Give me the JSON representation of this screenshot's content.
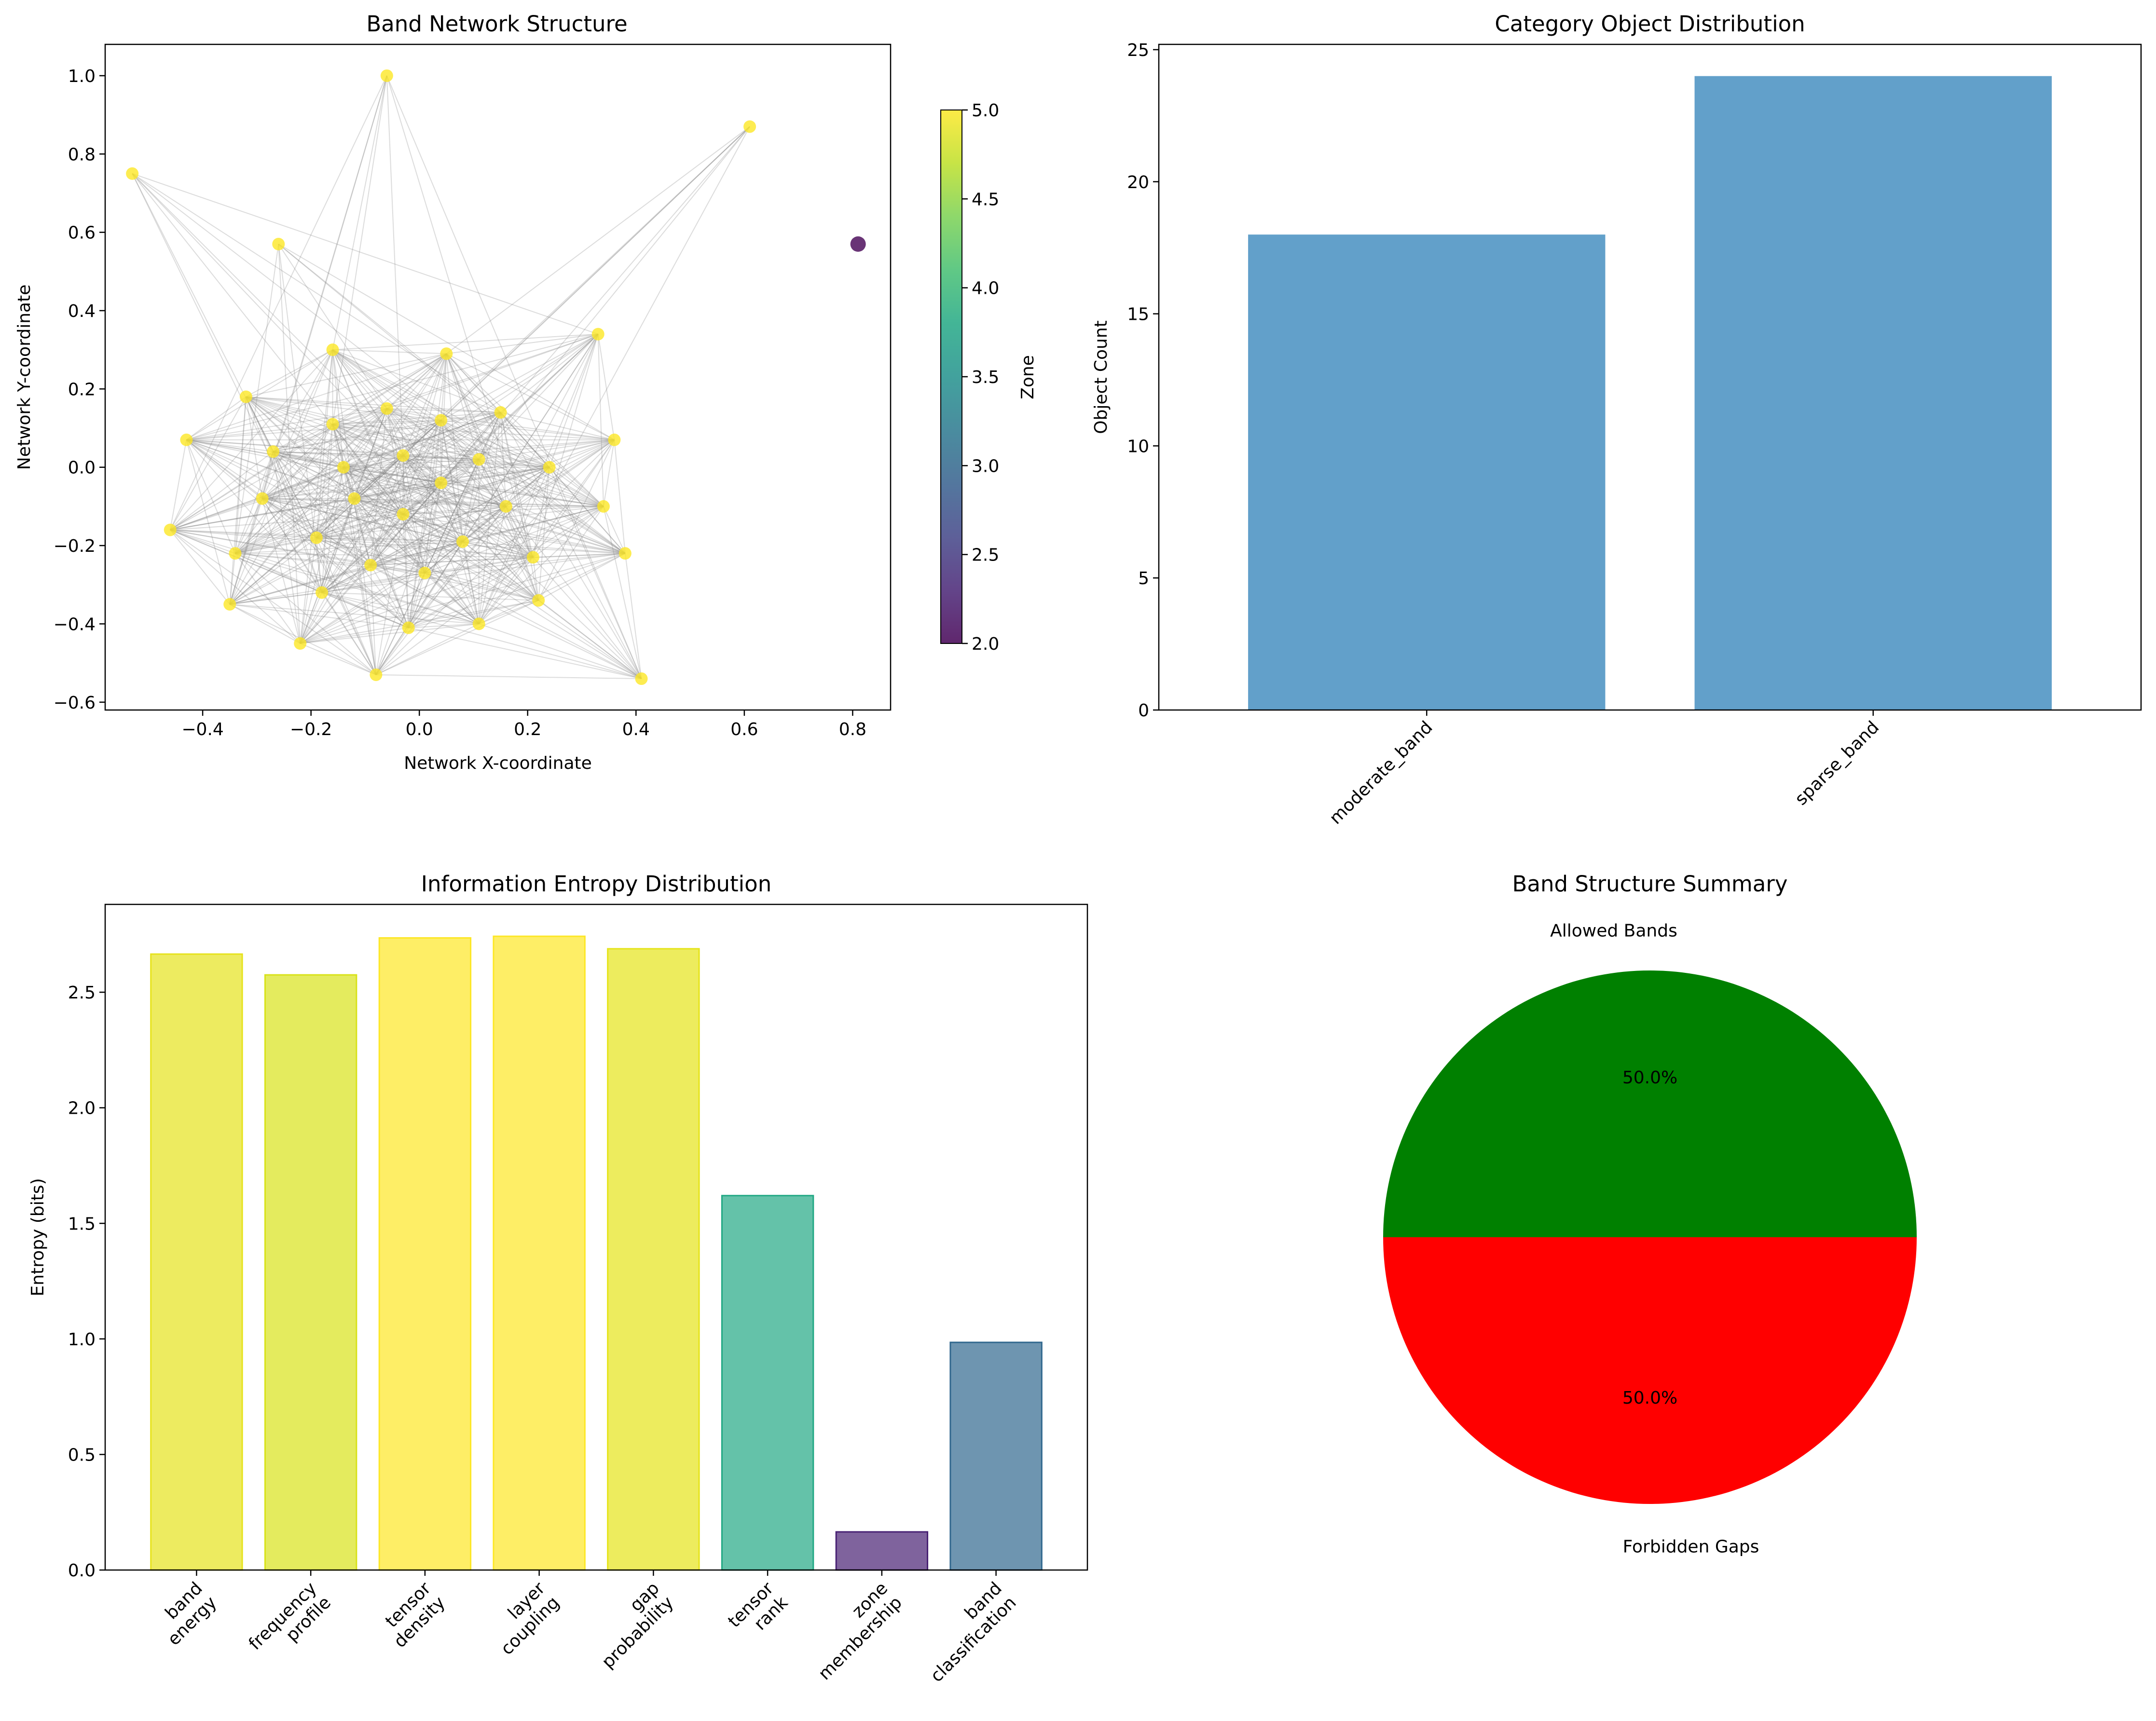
{
  "chart_data": [
    {
      "type": "scatter",
      "title": "Band Network Structure",
      "xlabel": "Network X-coordinate",
      "ylabel": "Network Y-coordinate",
      "xlim": [
        -0.58,
        0.87
      ],
      "ylim": [
        -0.62,
        1.08
      ],
      "x_ticks": [
        -0.4,
        -0.2,
        0.0,
        0.2,
        0.4,
        0.6,
        0.8
      ],
      "y_ticks": [
        -0.6,
        -0.4,
        -0.2,
        0.0,
        0.2,
        0.4,
        0.6,
        0.8,
        1.0
      ],
      "x_tick_labels": [
        "−0.4",
        "−0.2",
        "0.0",
        "0.2",
        "0.4",
        "0.6",
        "0.8"
      ],
      "y_tick_labels": [
        "−0.6",
        "−0.4",
        "−0.2",
        "0.0",
        "0.2",
        "0.4",
        "0.6",
        "0.8",
        "1.0"
      ],
      "colorbar": {
        "label": "Zone",
        "colormap": "viridis",
        "range": [
          2.0,
          5.0
        ],
        "ticks": [
          2.0,
          2.5,
          3.0,
          3.5,
          4.0,
          4.5,
          5.0
        ],
        "tick_labels": [
          "2.0",
          "2.5",
          "3.0",
          "3.5",
          "4.0",
          "4.5",
          "5.0"
        ]
      },
      "edge_color": "#808080",
      "points": [
        {
          "x": -0.53,
          "y": 0.75,
          "zone": 5
        },
        {
          "x": -0.06,
          "y": 1.0,
          "zone": 5
        },
        {
          "x": 0.61,
          "y": 0.87,
          "zone": 5
        },
        {
          "x": 0.81,
          "y": 0.57,
          "zone": 2
        },
        {
          "x": -0.26,
          "y": 0.57,
          "zone": 5
        },
        {
          "x": 0.33,
          "y": 0.34,
          "zone": 5
        },
        {
          "x": -0.16,
          "y": 0.3,
          "zone": 5
        },
        {
          "x": 0.05,
          "y": 0.29,
          "zone": 5
        },
        {
          "x": -0.32,
          "y": 0.18,
          "zone": 5
        },
        {
          "x": -0.06,
          "y": 0.15,
          "zone": 5
        },
        {
          "x": 0.15,
          "y": 0.14,
          "zone": 5
        },
        {
          "x": -0.16,
          "y": 0.11,
          "zone": 5
        },
        {
          "x": 0.04,
          "y": 0.12,
          "zone": 5
        },
        {
          "x": -0.43,
          "y": 0.07,
          "zone": 5
        },
        {
          "x": 0.36,
          "y": 0.07,
          "zone": 5
        },
        {
          "x": -0.27,
          "y": 0.04,
          "zone": 5
        },
        {
          "x": -0.03,
          "y": 0.03,
          "zone": 5
        },
        {
          "x": 0.11,
          "y": 0.02,
          "zone": 5
        },
        {
          "x": -0.14,
          "y": 0.0,
          "zone": 5
        },
        {
          "x": 0.24,
          "y": 0.0,
          "zone": 5
        },
        {
          "x": 0.04,
          "y": -0.04,
          "zone": 5
        },
        {
          "x": -0.29,
          "y": -0.08,
          "zone": 5
        },
        {
          "x": -0.12,
          "y": -0.08,
          "zone": 5
        },
        {
          "x": 0.16,
          "y": -0.1,
          "zone": 5
        },
        {
          "x": 0.34,
          "y": -0.1,
          "zone": 5
        },
        {
          "x": -0.03,
          "y": -0.12,
          "zone": 5
        },
        {
          "x": -0.46,
          "y": -0.16,
          "zone": 5
        },
        {
          "x": -0.19,
          "y": -0.18,
          "zone": 5
        },
        {
          "x": 0.08,
          "y": -0.19,
          "zone": 5
        },
        {
          "x": -0.34,
          "y": -0.22,
          "zone": 5
        },
        {
          "x": 0.38,
          "y": -0.22,
          "zone": 5
        },
        {
          "x": 0.21,
          "y": -0.23,
          "zone": 5
        },
        {
          "x": -0.09,
          "y": -0.25,
          "zone": 5
        },
        {
          "x": 0.01,
          "y": -0.27,
          "zone": 5
        },
        {
          "x": -0.18,
          "y": -0.32,
          "zone": 5
        },
        {
          "x": 0.22,
          "y": -0.34,
          "zone": 5
        },
        {
          "x": -0.35,
          "y": -0.35,
          "zone": 5
        },
        {
          "x": 0.11,
          "y": -0.4,
          "zone": 5
        },
        {
          "x": -0.02,
          "y": -0.41,
          "zone": 5
        },
        {
          "x": -0.22,
          "y": -0.45,
          "zone": 5
        },
        {
          "x": -0.08,
          "y": -0.53,
          "zone": 5
        },
        {
          "x": 0.41,
          "y": -0.54,
          "zone": 5
        }
      ]
    },
    {
      "type": "bar",
      "title": "Category Object Distribution",
      "xlabel": "",
      "ylabel": "Object Count",
      "categories": [
        "moderate_band",
        "sparse_band"
      ],
      "values": [
        18,
        24
      ],
      "ylim": [
        0,
        25.2
      ],
      "y_ticks": [
        0,
        5,
        10,
        15,
        20,
        25
      ],
      "y_tick_labels": [
        "0",
        "5",
        "10",
        "15",
        "20",
        "25"
      ],
      "color": "#1f77b4"
    },
    {
      "type": "bar",
      "title": "Information Entropy Distribution",
      "xlabel": "",
      "ylabel": "Entropy (bits)",
      "categories": [
        "band\nenergy",
        "frequency\nprofile",
        "tensor\ndensity",
        "layer\ncoupling",
        "gap\nprobability",
        "tensor\nrank",
        "zone\nmembership",
        "band\nclassification"
      ],
      "values": [
        2.665,
        2.575,
        2.735,
        2.742,
        2.688,
        1.62,
        0.165,
        0.985
      ],
      "colors": [
        "#e6e21c",
        "#d8e219",
        "#fde725",
        "#fde725",
        "#e5e419",
        "#22a884",
        "#482173",
        "#31688e"
      ],
      "ylim": [
        0,
        2.88
      ],
      "y_ticks": [
        0.0,
        0.5,
        1.0,
        1.5,
        2.0,
        2.5
      ],
      "y_tick_labels": [
        "0.0",
        "0.5",
        "1.0",
        "1.5",
        "2.0",
        "2.5"
      ]
    },
    {
      "type": "pie",
      "title": "Band Structure Summary",
      "labels": [
        "Allowed Bands",
        "Forbidden Gaps"
      ],
      "values": [
        50.0,
        50.0
      ],
      "pct_labels": [
        "50.0%",
        "50.0%"
      ],
      "colors": [
        "#008000",
        "#ff0000"
      ]
    }
  ]
}
